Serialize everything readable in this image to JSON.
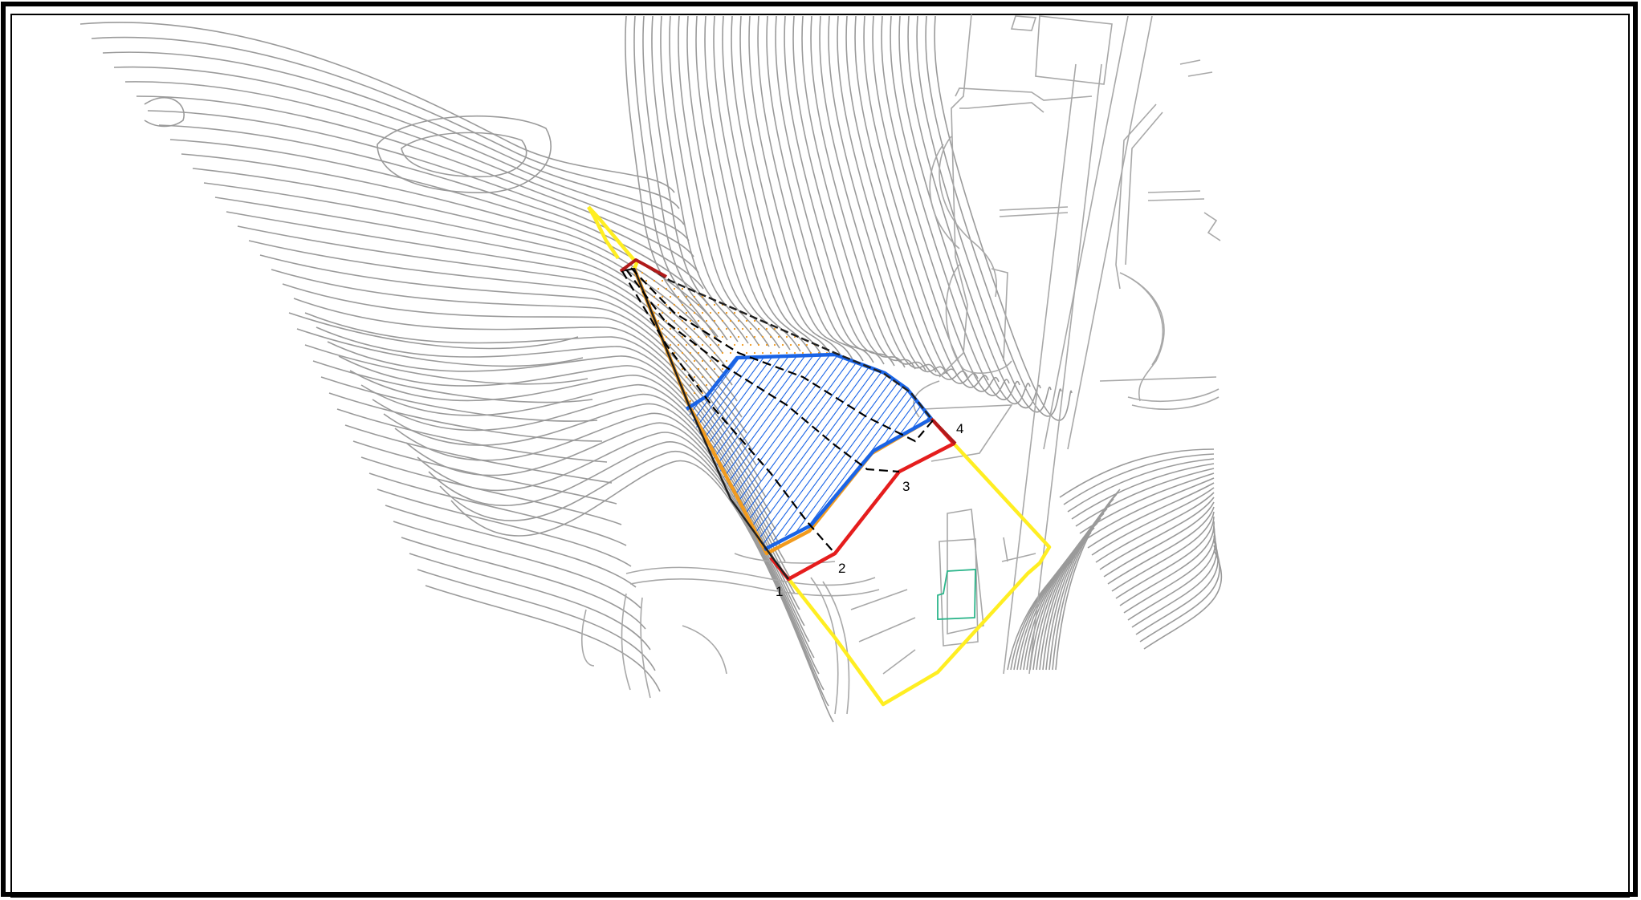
{
  "map": {
    "point_labels": [
      "1",
      "2",
      "3",
      "4"
    ],
    "colors": {
      "site_boundary": "#ffee22",
      "danger_zone": "#e51d1d",
      "caution_zone": "#f29b1e",
      "special_zone": "#1a64e6",
      "outline": "#202020",
      "building": "#2bb58a",
      "contour": "#9a9a9a"
    }
  }
}
